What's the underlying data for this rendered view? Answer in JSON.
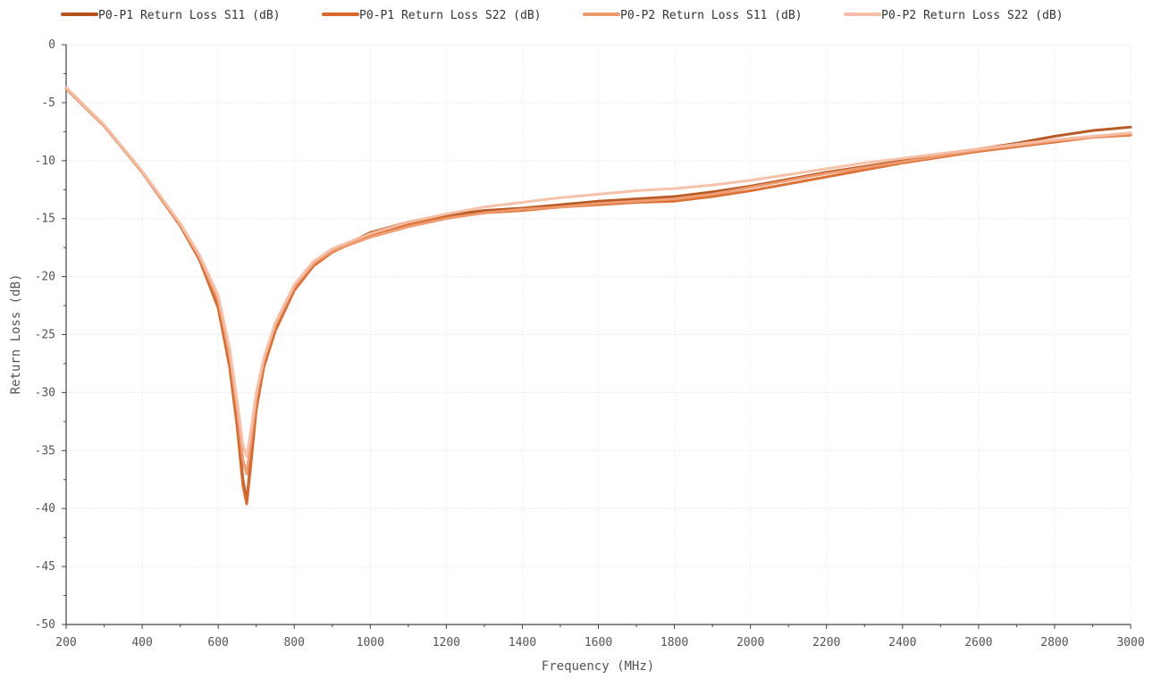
{
  "chart_data": {
    "type": "line",
    "xlabel": "Frequency (MHz)",
    "ylabel": "Return Loss (dB)",
    "xlim": [
      200,
      3000
    ],
    "ylim": [
      -50,
      0
    ],
    "xticks": [
      200,
      400,
      600,
      800,
      1000,
      1200,
      1400,
      1600,
      1800,
      2000,
      2200,
      2400,
      2600,
      2800,
      3000
    ],
    "yticks": [
      0,
      -5,
      -10,
      -15,
      -20,
      -25,
      -30,
      -35,
      -40,
      -45,
      -50
    ],
    "grid": true,
    "legend_position": "top",
    "series": [
      {
        "name": "P0-P1 Return Loss S11 (dB)",
        "color": "#b5521b",
        "x": [
          200,
          300,
          400,
          500,
          550,
          600,
          630,
          650,
          665,
          675,
          685,
          700,
          720,
          750,
          800,
          850,
          900,
          1000,
          1100,
          1200,
          1300,
          1400,
          1500,
          1600,
          1700,
          1800,
          1900,
          2000,
          2100,
          2200,
          2300,
          2400,
          2500,
          2600,
          2700,
          2800,
          2900,
          3000
        ],
        "y": [
          -3.8,
          -7.0,
          -11.0,
          -15.6,
          -18.5,
          -22.5,
          -27.5,
          -32.5,
          -37.5,
          -39.4,
          -36.0,
          -31.0,
          -27.5,
          -24.5,
          -21.0,
          -19.0,
          -17.8,
          -16.2,
          -15.3,
          -14.7,
          -14.3,
          -14.1,
          -13.8,
          -13.5,
          -13.3,
          -13.1,
          -12.7,
          -12.2,
          -11.6,
          -11.0,
          -10.5,
          -10.0,
          -9.5,
          -9.0,
          -8.5,
          -7.9,
          -7.4,
          -7.1
        ]
      },
      {
        "name": "P0-P1 Return Loss S22 (dB)",
        "color": "#d9692a",
        "x": [
          200,
          300,
          400,
          500,
          550,
          600,
          630,
          650,
          665,
          675,
          685,
          700,
          720,
          750,
          800,
          850,
          900,
          1000,
          1100,
          1200,
          1300,
          1400,
          1500,
          1600,
          1700,
          1800,
          1900,
          2000,
          2100,
          2200,
          2300,
          2400,
          2500,
          2600,
          2700,
          2800,
          2900,
          3000
        ],
        "y": [
          -3.8,
          -7.0,
          -11.0,
          -15.6,
          -18.5,
          -22.7,
          -27.8,
          -33.0,
          -38.0,
          -39.6,
          -36.5,
          -31.5,
          -27.8,
          -24.7,
          -21.2,
          -19.1,
          -17.9,
          -16.4,
          -15.5,
          -14.9,
          -14.5,
          -14.3,
          -14.0,
          -13.8,
          -13.6,
          -13.5,
          -13.1,
          -12.6,
          -12.0,
          -11.4,
          -10.8,
          -10.2,
          -9.7,
          -9.2,
          -8.8,
          -8.4,
          -8.0,
          -7.8
        ]
      },
      {
        "name": "P0-P2 Return Loss S11 (dB)",
        "color": "#ee9a6f",
        "x": [
          200,
          300,
          400,
          500,
          550,
          600,
          630,
          650,
          665,
          675,
          685,
          700,
          720,
          750,
          800,
          850,
          900,
          1000,
          1100,
          1200,
          1300,
          1400,
          1500,
          1600,
          1700,
          1800,
          1900,
          2000,
          2100,
          2200,
          2300,
          2400,
          2500,
          2600,
          2700,
          2800,
          2900,
          3000
        ],
        "y": [
          -3.8,
          -7.0,
          -11.0,
          -15.5,
          -18.3,
          -22.0,
          -26.8,
          -31.5,
          -35.8,
          -37.0,
          -34.5,
          -30.5,
          -27.2,
          -24.2,
          -20.9,
          -18.9,
          -17.8,
          -16.6,
          -15.7,
          -15.0,
          -14.5,
          -14.2,
          -14.0,
          -13.7,
          -13.5,
          -13.3,
          -12.9,
          -12.3,
          -11.7,
          -11.1,
          -10.6,
          -10.1,
          -9.6,
          -9.1,
          -8.7,
          -8.3,
          -8.0,
          -7.7
        ]
      },
      {
        "name": "P0-P2 Return Loss S22 (dB)",
        "color": "#f5bfa5",
        "x": [
          200,
          300,
          400,
          500,
          550,
          600,
          630,
          650,
          665,
          675,
          685,
          700,
          720,
          750,
          800,
          850,
          900,
          1000,
          1100,
          1200,
          1300,
          1400,
          1500,
          1600,
          1700,
          1800,
          1900,
          2000,
          2100,
          2200,
          2300,
          2400,
          2500,
          2600,
          2700,
          2800,
          2900,
          3000
        ],
        "y": [
          -3.7,
          -6.9,
          -10.9,
          -15.4,
          -18.1,
          -21.6,
          -26.2,
          -30.8,
          -34.5,
          -35.5,
          -33.5,
          -30.0,
          -27.0,
          -24.0,
          -20.7,
          -18.7,
          -17.6,
          -16.3,
          -15.3,
          -14.6,
          -14.0,
          -13.6,
          -13.2,
          -12.9,
          -12.6,
          -12.4,
          -12.1,
          -11.7,
          -11.2,
          -10.7,
          -10.2,
          -9.8,
          -9.4,
          -9.0,
          -8.6,
          -8.2,
          -7.9,
          -7.6
        ]
      }
    ]
  }
}
